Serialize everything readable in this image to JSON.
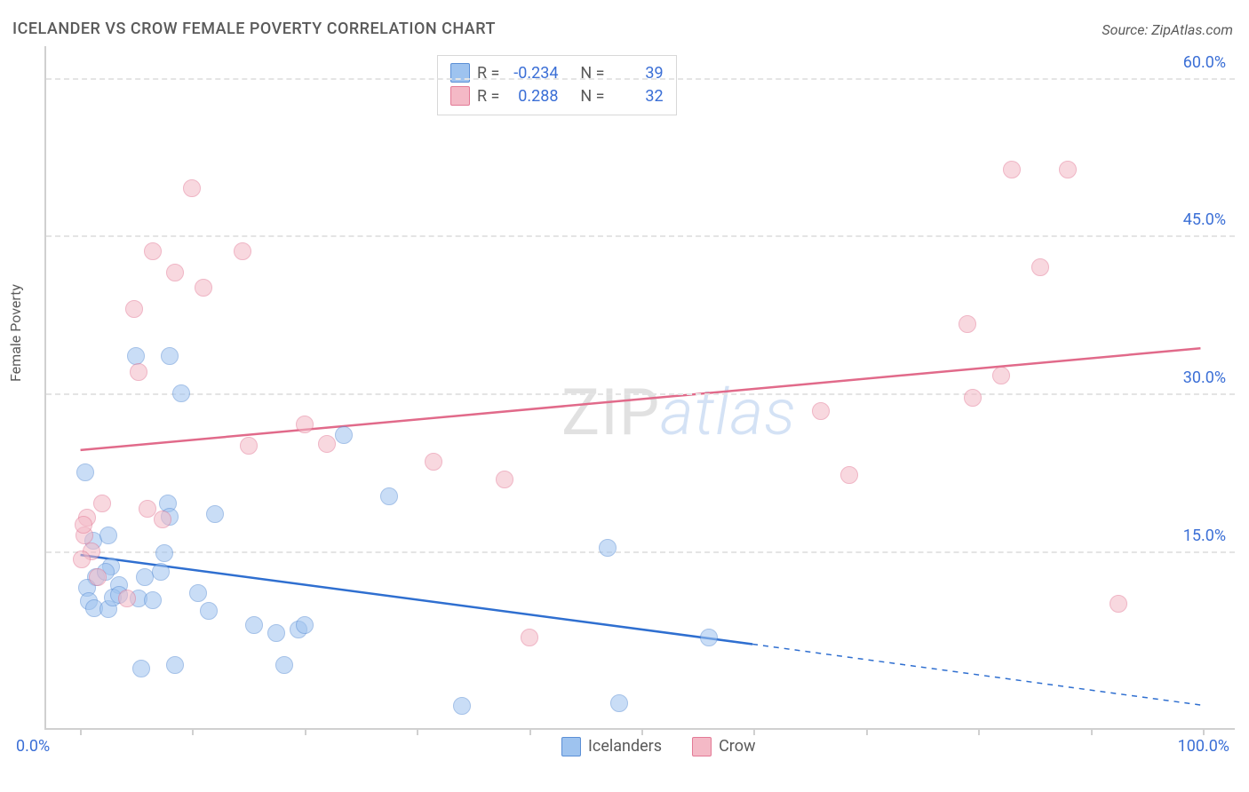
{
  "title": "ICELANDER VS CROW FEMALE POVERTY CORRELATION CHART",
  "source_prefix": "Source: ",
  "source_name": "ZipAtlas.com",
  "watermark": {
    "part1": "ZIP",
    "part2": "atlas"
  },
  "ylabel": "Female Poverty",
  "chart": {
    "type": "scatter-with-regression",
    "background_color": "#ffffff",
    "grid_color": "#e4e4e4",
    "axis_color": "#d0d0d0",
    "tick_label_color": "#3b6fd6",
    "label_color": "#5a5a5a",
    "xlim": [
      -3,
      103
    ],
    "ylim": [
      -2,
      63
    ],
    "xtick_positions": [
      0,
      10,
      20,
      30,
      40,
      50,
      60,
      70,
      80,
      90,
      100
    ],
    "xtick_labels": {
      "0": "0.0%",
      "100": "100.0%"
    },
    "ytick_positions": [
      15,
      30,
      45,
      60
    ],
    "ytick_labels": {
      "15": "15.0%",
      "30": "30.0%",
      "45": "45.0%",
      "60": "60.0%"
    },
    "point_radius": 10,
    "point_opacity": 0.55,
    "series": [
      {
        "key": "icelanders",
        "label": "Icelanders",
        "color_fill": "#9ec3ef",
        "color_stroke": "#5b8fd6",
        "correlation_R": "-0.234",
        "correlation_N": "39",
        "trend": {
          "x1": 0,
          "y1": 14.5,
          "x2": 60,
          "y2": 6.0,
          "x1_dash": 60,
          "y1_dash": 6.0,
          "x2_dash": 100,
          "y2_dash": 0.2,
          "stroke": "#2f6fd0",
          "width": 2.5
        },
        "points": [
          [
            5,
            33.5
          ],
          [
            8,
            33.5
          ],
          [
            9,
            30
          ],
          [
            0.5,
            22.5
          ],
          [
            1.2,
            16
          ],
          [
            2.5,
            16.5
          ],
          [
            2.8,
            13.5
          ],
          [
            1.4,
            12.5
          ],
          [
            2.3,
            13
          ],
          [
            3.5,
            11.8
          ],
          [
            0.6,
            11.5
          ],
          [
            0.8,
            10.2
          ],
          [
            1.3,
            9.6
          ],
          [
            2.5,
            9.5
          ],
          [
            2.9,
            10.6
          ],
          [
            3.5,
            10.8
          ],
          [
            5.2,
            10.5
          ],
          [
            5.8,
            12.5
          ],
          [
            6.5,
            10.3
          ],
          [
            7.2,
            13
          ],
          [
            7.5,
            14.8
          ],
          [
            7.8,
            19.5
          ],
          [
            8,
            18.3
          ],
          [
            10.5,
            11
          ],
          [
            11.5,
            9.3
          ],
          [
            12,
            18.5
          ],
          [
            15.5,
            8
          ],
          [
            17.5,
            7.2
          ],
          [
            18.2,
            4.2
          ],
          [
            19.5,
            7.5
          ],
          [
            20,
            8
          ],
          [
            23.5,
            26
          ],
          [
            27.5,
            20.2
          ],
          [
            34,
            0.3
          ],
          [
            47,
            15.3
          ],
          [
            48,
            0.5
          ],
          [
            5.5,
            3.8
          ],
          [
            8.5,
            4.2
          ],
          [
            56,
            6.8
          ]
        ]
      },
      {
        "key": "crow",
        "label": "Crow",
        "color_fill": "#f4b9c6",
        "color_stroke": "#e37a96",
        "correlation_R": "0.288",
        "correlation_N": "32",
        "trend": {
          "x1": 0,
          "y1": 24.5,
          "x2": 100,
          "y2": 34.2,
          "stroke": "#e16a8a",
          "width": 2.5
        },
        "points": [
          [
            0.4,
            16.5
          ],
          [
            0.6,
            18.2
          ],
          [
            1,
            15
          ],
          [
            1.6,
            12.5
          ],
          [
            2,
            19.5
          ],
          [
            4.8,
            38
          ],
          [
            6.5,
            43.5
          ],
          [
            5.2,
            32
          ],
          [
            6,
            19
          ],
          [
            7.4,
            18
          ],
          [
            8.5,
            41.5
          ],
          [
            10,
            49.5
          ],
          [
            11,
            40
          ],
          [
            14.5,
            43.5
          ],
          [
            15,
            25
          ],
          [
            20,
            27
          ],
          [
            22,
            25.2
          ],
          [
            31.5,
            23.5
          ],
          [
            37.8,
            21.8
          ],
          [
            40,
            6.8
          ],
          [
            66,
            28.3
          ],
          [
            68.5,
            22.2
          ],
          [
            79,
            36.6
          ],
          [
            79.5,
            29.6
          ],
          [
            82,
            31.7
          ],
          [
            83,
            51.3
          ],
          [
            85.5,
            42
          ],
          [
            88,
            51.3
          ],
          [
            92.5,
            10
          ],
          [
            4.2,
            10.5
          ],
          [
            0.2,
            14.2
          ],
          [
            0.3,
            17.5
          ]
        ]
      }
    ]
  },
  "legend_top": {
    "r_label": "R =",
    "n_label": "N ="
  }
}
